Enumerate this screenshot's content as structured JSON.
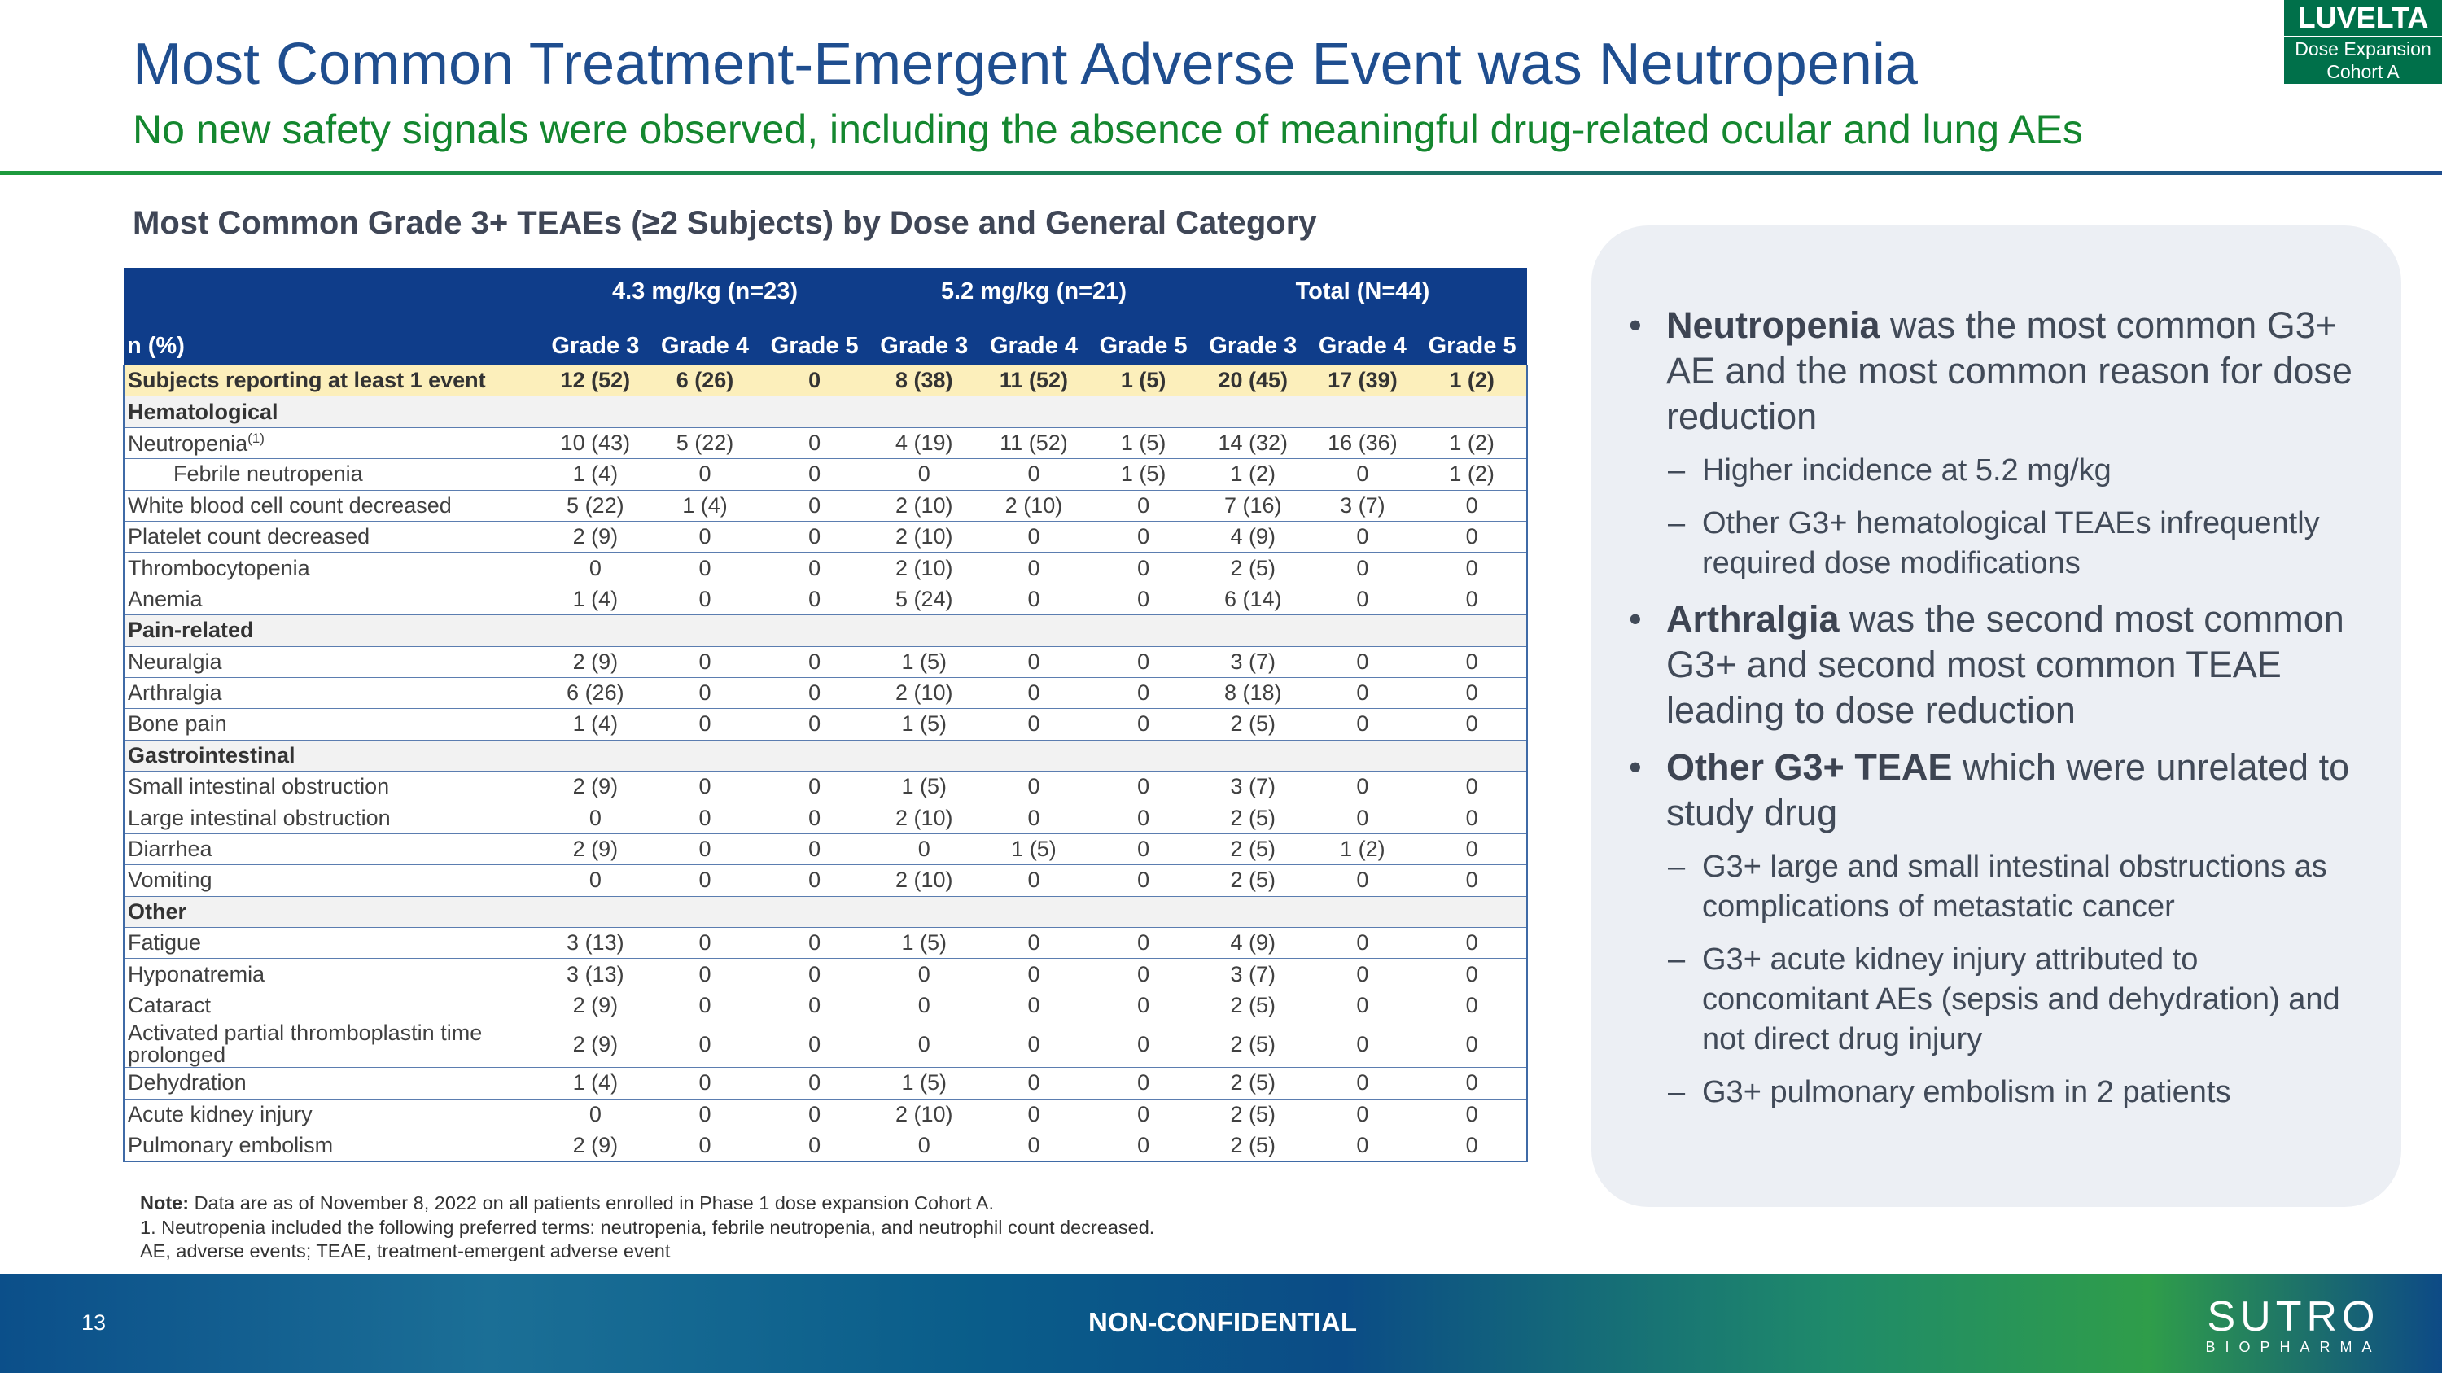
{
  "header": {
    "title": "Most Common Treatment-Emergent Adverse Event was Neutropenia",
    "subtitle": "No new safety signals were observed, including the absence of meaningful drug-related ocular and lung AEs"
  },
  "badge": {
    "title": "LUVELTA",
    "lines": [
      "Dose Expansion",
      "Cohort A"
    ]
  },
  "table": {
    "title": "Most Common Grade 3+ TEAEs (≥2 Subjects) by Dose and General Category",
    "groups": [
      "4.3 mg/kg (n=23)",
      "5.2 mg/kg (n=21)",
      "Total (N=44)"
    ],
    "row_header": "n (%)",
    "columns": [
      "Grade 3",
      "Grade 4",
      "Grade 5",
      "Grade 3",
      "Grade 4",
      "Grade 5",
      "Grade 3",
      "Grade 4",
      "Grade 5"
    ],
    "summary": {
      "label": "Subjects reporting at least 1 event",
      "values": [
        "12 (52)",
        "6 (26)",
        "0",
        "8 (38)",
        "11 (52)",
        "1 (5)",
        "20 (45)",
        "17 (39)",
        "1 (2)"
      ]
    },
    "sections": [
      {
        "label": "Hematological",
        "rows": [
          {
            "label": "Neutropenia",
            "sup": "(1)",
            "values": [
              "10 (43)",
              "5 (22)",
              "0",
              "4 (19)",
              "11 (52)",
              "1 (5)",
              "14 (32)",
              "16 (36)",
              "1 (2)"
            ]
          },
          {
            "label": "Febrile neutropenia",
            "indent": true,
            "values": [
              "1 (4)",
              "0",
              "0",
              "0",
              "0",
              "1 (5)",
              "1 (2)",
              "0",
              "1 (2)"
            ]
          },
          {
            "label": "White blood cell count decreased",
            "values": [
              "5 (22)",
              "1 (4)",
              "0",
              "2 (10)",
              "2 (10)",
              "0",
              "7 (16)",
              "3 (7)",
              "0"
            ]
          },
          {
            "label": "Platelet count decreased",
            "values": [
              "2 (9)",
              "0",
              "0",
              "2 (10)",
              "0",
              "0",
              "4 (9)",
              "0",
              "0"
            ]
          },
          {
            "label": "Thrombocytopenia",
            "values": [
              "0",
              "0",
              "0",
              "2 (10)",
              "0",
              "0",
              "2 (5)",
              "0",
              "0"
            ]
          },
          {
            "label": "Anemia",
            "values": [
              "1 (4)",
              "0",
              "0",
              "5 (24)",
              "0",
              "0",
              "6 (14)",
              "0",
              "0"
            ]
          }
        ]
      },
      {
        "label": "Pain-related",
        "rows": [
          {
            "label": "Neuralgia",
            "values": [
              "2 (9)",
              "0",
              "0",
              "1 (5)",
              "0",
              "0",
              "3 (7)",
              "0",
              "0"
            ]
          },
          {
            "label": "Arthralgia",
            "values": [
              "6 (26)",
              "0",
              "0",
              "2 (10)",
              "0",
              "0",
              "8 (18)",
              "0",
              "0"
            ]
          },
          {
            "label": "Bone pain",
            "values": [
              "1 (4)",
              "0",
              "0",
              "1 (5)",
              "0",
              "0",
              "2 (5)",
              "0",
              "0"
            ]
          }
        ]
      },
      {
        "label": "Gastrointestinal",
        "rows": [
          {
            "label": "Small intestinal obstruction",
            "values": [
              "2 (9)",
              "0",
              "0",
              "1 (5)",
              "0",
              "0",
              "3 (7)",
              "0",
              "0"
            ]
          },
          {
            "label": "Large intestinal obstruction",
            "values": [
              "0",
              "0",
              "0",
              "2 (10)",
              "0",
              "0",
              "2 (5)",
              "0",
              "0"
            ]
          },
          {
            "label": "Diarrhea",
            "values": [
              "2 (9)",
              "0",
              "0",
              "0",
              "1 (5)",
              "0",
              "2 (5)",
              "1 (2)",
              "0"
            ]
          },
          {
            "label": "Vomiting",
            "values": [
              "0",
              "0",
              "0",
              "2 (10)",
              "0",
              "0",
              "2 (5)",
              "0",
              "0"
            ]
          }
        ]
      },
      {
        "label": "Other",
        "rows": [
          {
            "label": "Fatigue",
            "values": [
              "3 (13)",
              "0",
              "0",
              "1 (5)",
              "0",
              "0",
              "4 (9)",
              "0",
              "0"
            ]
          },
          {
            "label": "Hyponatremia",
            "values": [
              "3 (13)",
              "0",
              "0",
              "0",
              "0",
              "0",
              "3 (7)",
              "0",
              "0"
            ]
          },
          {
            "label": "Cataract",
            "values": [
              "2 (9)",
              "0",
              "0",
              "0",
              "0",
              "0",
              "2 (5)",
              "0",
              "0"
            ]
          },
          {
            "label": "Activated partial thromboplastin time prolonged",
            "values": [
              "2 (9)",
              "0",
              "0",
              "0",
              "0",
              "0",
              "2 (5)",
              "0",
              "0"
            ]
          },
          {
            "label": "Dehydration",
            "values": [
              "1 (4)",
              "0",
              "0",
              "1 (5)",
              "0",
              "0",
              "2 (5)",
              "0",
              "0"
            ]
          },
          {
            "label": "Acute kidney injury",
            "values": [
              "0",
              "0",
              "0",
              "2 (10)",
              "0",
              "0",
              "2 (5)",
              "0",
              "0"
            ]
          },
          {
            "label": "Pulmonary embolism",
            "values": [
              "2 (9)",
              "0",
              "0",
              "0",
              "0",
              "0",
              "2 (5)",
              "0",
              "0"
            ]
          }
        ]
      }
    ]
  },
  "notes": {
    "lead": "Note:",
    "text": "Data are as of November 8, 2022 on all patients enrolled in Phase 1 dose expansion Cohort A.",
    "lines": [
      "1. Neutropenia included the following preferred terms: neutropenia, febrile neutropenia, and neutrophil count decreased.",
      "AE, adverse events; TEAE, treatment-emergent adverse event"
    ]
  },
  "panel": {
    "bullets": [
      {
        "bold": "Neutropenia",
        "text": " was the most common G3+ AE and the most common reason for dose reduction",
        "subs": [
          "Higher incidence at 5.2 mg/kg",
          "Other G3+ hematological TEAEs infrequently required dose modifications"
        ]
      },
      {
        "bold": "Arthralgia",
        "text": " was the second most common G3+ and second most common TEAE leading to dose reduction",
        "subs": []
      },
      {
        "bold": "Other G3+ TEAE",
        "text": " which were unrelated to study drug",
        "subs": [
          "G3+ large and small intestinal obstructions as complications of metastatic cancer",
          "G3+ acute kidney injury attributed to concomitant AEs (sepsis and dehydration) and not direct drug injury",
          "G3+ pulmonary embolism in 2 patients"
        ]
      }
    ]
  },
  "footer": {
    "page_number": "13",
    "classification": "NON-CONFIDENTIAL",
    "logo": "SUTRO",
    "tagline": "BIOPHARMA"
  }
}
